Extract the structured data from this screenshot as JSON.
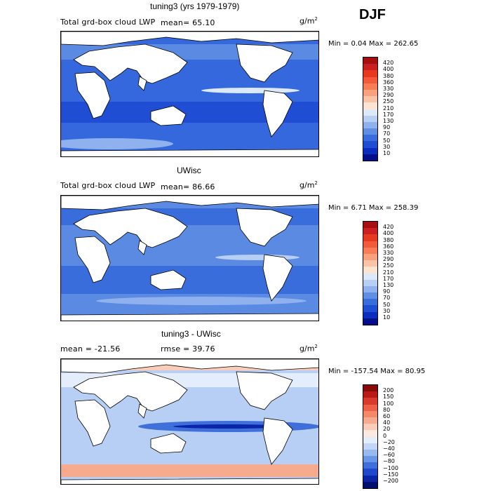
{
  "season": "DJF",
  "chart_data": [
    {
      "type": "heatmap",
      "title": "tuning3 (yrs 1979-1979)",
      "subtitle_left": "Total grd-box cloud LWP",
      "mean_text": "mean=   65.10",
      "units_base": "g/m",
      "units_exp": "2",
      "minmax_text": "Min =    0.04 Max = 262.65",
      "stats": {
        "mean": 65.1,
        "min": 0.04,
        "max": 262.65
      },
      "levels": [
        "420",
        "400",
        "380",
        "360",
        "330",
        "290",
        "250",
        "210",
        "170",
        "130",
        "90",
        "70",
        "50",
        "30",
        "10"
      ],
      "colors": [
        "#a50f0f",
        "#cc1f1f",
        "#e8381f",
        "#f25a3a",
        "#f77d57",
        "#f9a07c",
        "#fbc3a6",
        "#fde4d2",
        "#dce9fb",
        "#b7cff5",
        "#8fb2ee",
        "#5f8fe5",
        "#3a6ddc",
        "#1f4dd3",
        "#0c2cc0",
        "#030f8a"
      ],
      "panel_fill": "#3568dc"
    },
    {
      "type": "heatmap",
      "title": "UWisc",
      "subtitle_left": "Total grd-box cloud LWP",
      "mean_text": "mean=   86.66",
      "units_base": "g/m",
      "units_exp": "2",
      "minmax_text": "Min =    6.71 Max = 258.39",
      "stats": {
        "mean": 86.66,
        "min": 6.71,
        "max": 258.39
      },
      "levels": [
        "420",
        "400",
        "380",
        "360",
        "330",
        "290",
        "250",
        "210",
        "170",
        "130",
        "90",
        "70",
        "50",
        "30",
        "10"
      ],
      "colors": [
        "#a50f0f",
        "#cc1f1f",
        "#e8381f",
        "#f25a3a",
        "#f77d57",
        "#f9a07c",
        "#fbc3a6",
        "#fde4d2",
        "#dce9fb",
        "#b7cff5",
        "#8fb2ee",
        "#5f8fe5",
        "#3a6ddc",
        "#1f4dd3",
        "#0c2cc0",
        "#030f8a"
      ],
      "panel_fill": "#5b8ae3"
    },
    {
      "type": "heatmap",
      "title": "tuning3 - UWisc",
      "subtitle_left": "mean = -21.56",
      "rmse_text": "rmse =   39.76",
      "units_base": "g/m",
      "units_exp": "2",
      "minmax_text": "Min = -157.54 Max =  80.95",
      "stats": {
        "mean": -21.56,
        "rmse": 39.76,
        "min": -157.54,
        "max": 80.95
      },
      "levels": [
        "200",
        "150",
        "100",
        "80",
        "60",
        "40",
        "20",
        "0",
        "−20",
        "−40",
        "−60",
        "−80",
        "−100",
        "−150",
        "−200"
      ],
      "colors": [
        "#8a0a0a",
        "#b81a1a",
        "#d93a2a",
        "#ee6048",
        "#f48868",
        "#f7ab8e",
        "#fbcdb8",
        "#fde9df",
        "#e3edfb",
        "#c2d6f7",
        "#98baf0",
        "#6a96e6",
        "#3f6fdb",
        "#1f49cc",
        "#0b25a8",
        "#030f6e"
      ],
      "panel_fill": "#b8cff5"
    }
  ]
}
